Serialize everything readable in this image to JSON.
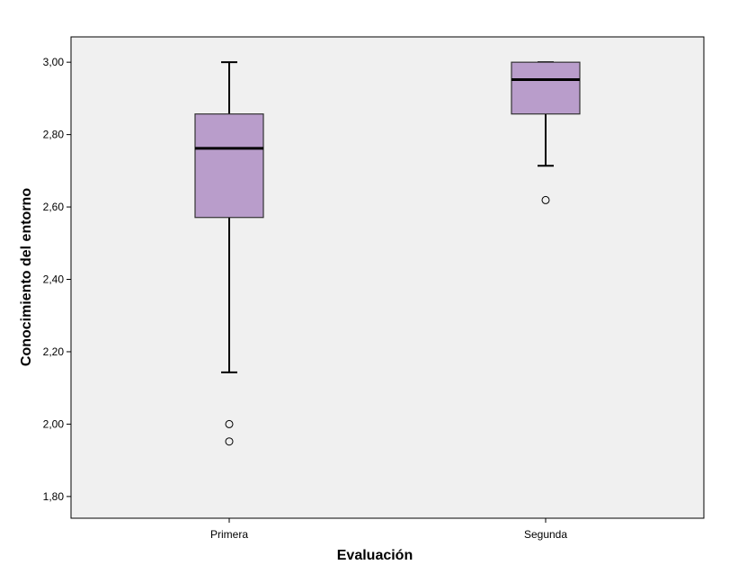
{
  "chart_data": {
    "type": "boxplot",
    "title": "",
    "xlabel": "Evaluación",
    "ylabel": "Conocimiento del entorno",
    "ylim": [
      1.74,
      3.07
    ],
    "yticks": [
      {
        "value": 1.8,
        "label": "1,80"
      },
      {
        "value": 2.0,
        "label": "2,00"
      },
      {
        "value": 2.2,
        "label": "2,20"
      },
      {
        "value": 2.4,
        "label": "2,40"
      },
      {
        "value": 2.6,
        "label": "2,60"
      },
      {
        "value": 2.8,
        "label": "2,80"
      },
      {
        "value": 3.0,
        "label": "3,00"
      }
    ],
    "grid": false,
    "background_color": "#f0f0f0",
    "box_color": "#b99dcb",
    "categories": [
      "Primera",
      "Segunda"
    ],
    "boxes": [
      {
        "category": "Primera",
        "min": 2.143,
        "q1": 2.571,
        "median": 2.762,
        "q3": 2.857,
        "max": 3.0,
        "outliers": [
          2.0,
          1.952
        ]
      },
      {
        "category": "Segunda",
        "min": 2.714,
        "q1": 2.857,
        "median": 2.952,
        "q3": 3.0,
        "max": 3.0,
        "outliers": [
          2.619
        ]
      }
    ]
  }
}
